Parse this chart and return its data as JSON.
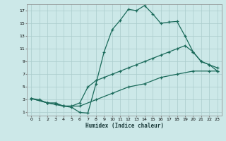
{
  "xlabel": "Humidex (Indice chaleur)",
  "bg_color": "#cce8e8",
  "grid_color": "#aacccc",
  "line_color": "#1a6a5a",
  "xlim": [
    -0.5,
    23.5
  ],
  "ylim": [
    0.5,
    18
  ],
  "xticks": [
    0,
    1,
    2,
    3,
    4,
    5,
    6,
    7,
    8,
    9,
    10,
    11,
    12,
    13,
    14,
    15,
    16,
    17,
    18,
    19,
    20,
    21,
    22,
    23
  ],
  "yticks": [
    1,
    3,
    5,
    7,
    9,
    11,
    13,
    15,
    17
  ],
  "line1_x": [
    0,
    1,
    2,
    3,
    4,
    5,
    6,
    7,
    8,
    9,
    10,
    11,
    12,
    13,
    14,
    15,
    16,
    17,
    18,
    19,
    20,
    21,
    22,
    23
  ],
  "line1_y": [
    3.2,
    3.0,
    2.5,
    2.3,
    2.0,
    1.8,
    1.0,
    0.9,
    5.5,
    10.5,
    14.0,
    15.5,
    17.2,
    17.0,
    17.8,
    16.5,
    15.0,
    15.2,
    15.3,
    13.0,
    10.5,
    9.0,
    8.5,
    7.5
  ],
  "line2_x": [
    0,
    2,
    3,
    4,
    5,
    6,
    7,
    8,
    9,
    10,
    11,
    12,
    13,
    14,
    15,
    16,
    17,
    18,
    19,
    20,
    21,
    22,
    23
  ],
  "line2_y": [
    3.2,
    2.5,
    2.5,
    2.0,
    2.0,
    2.5,
    5.0,
    6.0,
    6.5,
    7.0,
    7.5,
    8.0,
    8.5,
    9.0,
    9.5,
    10.0,
    10.5,
    11.0,
    11.5,
    10.5,
    9.0,
    8.5,
    8.0
  ],
  "line3_x": [
    0,
    2,
    4,
    6,
    8,
    10,
    12,
    14,
    16,
    18,
    20,
    22,
    23
  ],
  "line3_y": [
    3.2,
    2.5,
    2.0,
    2.0,
    3.0,
    4.0,
    5.0,
    5.5,
    6.5,
    7.0,
    7.5,
    7.5,
    7.5
  ]
}
